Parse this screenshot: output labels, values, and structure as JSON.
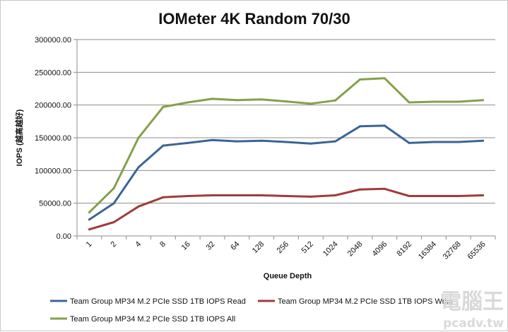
{
  "chart_data": {
    "type": "line",
    "title": "IOMeter 4K Random 70/30",
    "xlabel": "Queue Depth",
    "ylabel": "IOPS (越高越好)",
    "categories": [
      "1",
      "2",
      "4",
      "8",
      "16",
      "32",
      "64",
      "128",
      "256",
      "512",
      "1024",
      "2048",
      "4096",
      "8192",
      "16384",
      "32768",
      "65536"
    ],
    "ylim": [
      0,
      300000
    ],
    "ytick_labels": [
      "0.00",
      "50000.00",
      "100000.00",
      "150000.00",
      "200000.00",
      "250000.00",
      "300000.00"
    ],
    "grid": "horizontal",
    "legend_position": "bottom",
    "series": [
      {
        "name": "Team Group MP34 M.2 PCIe SSD 1TB IOPS Read",
        "color": "#3c6496",
        "values": [
          25000,
          50000,
          105000,
          138000,
          142000,
          146500,
          144500,
          145500,
          143500,
          141000,
          144500,
          167500,
          168500,
          142000,
          143500,
          143500,
          145500
        ]
      },
      {
        "name": "Team Group MP34 M.2 PCIe SSD 1TB IOPS Write",
        "color": "#a03c3a",
        "values": [
          10000,
          21000,
          45000,
          59000,
          61000,
          62000,
          62000,
          62000,
          61000,
          60000,
          62000,
          71000,
          72000,
          61000,
          61000,
          61000,
          62000
        ]
      },
      {
        "name": "Team Group MP34 M.2 PCIe SSD 1TB IOPS All",
        "color": "#84a04a",
        "values": [
          36000,
          73000,
          150000,
          197000,
          204000,
          209500,
          207500,
          208500,
          205500,
          202000,
          207000,
          239000,
          241000,
          204000,
          205000,
          205000,
          207500
        ]
      }
    ]
  },
  "watermark": {
    "text_top": "電腦王",
    "text_bottom": "pcadv.tw"
  }
}
